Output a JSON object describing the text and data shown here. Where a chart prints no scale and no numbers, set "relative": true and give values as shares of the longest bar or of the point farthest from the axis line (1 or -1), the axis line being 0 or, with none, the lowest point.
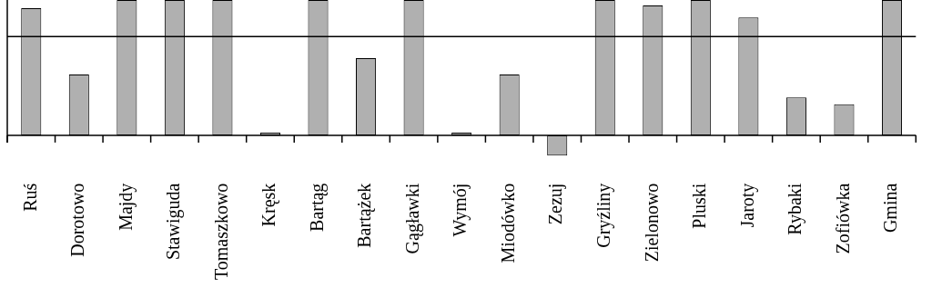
{
  "chart_data": {
    "type": "bar",
    "relative": true,
    "categories": [
      "Ruś",
      "Dorotowo",
      "Majdy",
      "Stawiguda",
      "Tomaszkowo",
      "Kręsk",
      "Bartąg",
      "Bartążek",
      "Gągławki",
      "Wymój",
      "Miodówko",
      "Zezuj",
      "Gryźliny",
      "Zielonowo",
      "Pluski",
      "Jaroty",
      "Rybaki",
      "Zofiówka",
      "Gmina"
    ],
    "values": [
      0.94,
      0.45,
      1,
      1,
      1,
      0.02,
      1,
      0.57,
      1,
      0.02,
      0.45,
      -0.15,
      1,
      0.96,
      1,
      0.87,
      0.28,
      0.23,
      1
    ],
    "color": "#b0b0b0",
    "ref_lines": [
      {
        "axis": "y",
        "value": 0.73,
        "color": "#000000"
      }
    ],
    "grid": false,
    "legend": false
  }
}
